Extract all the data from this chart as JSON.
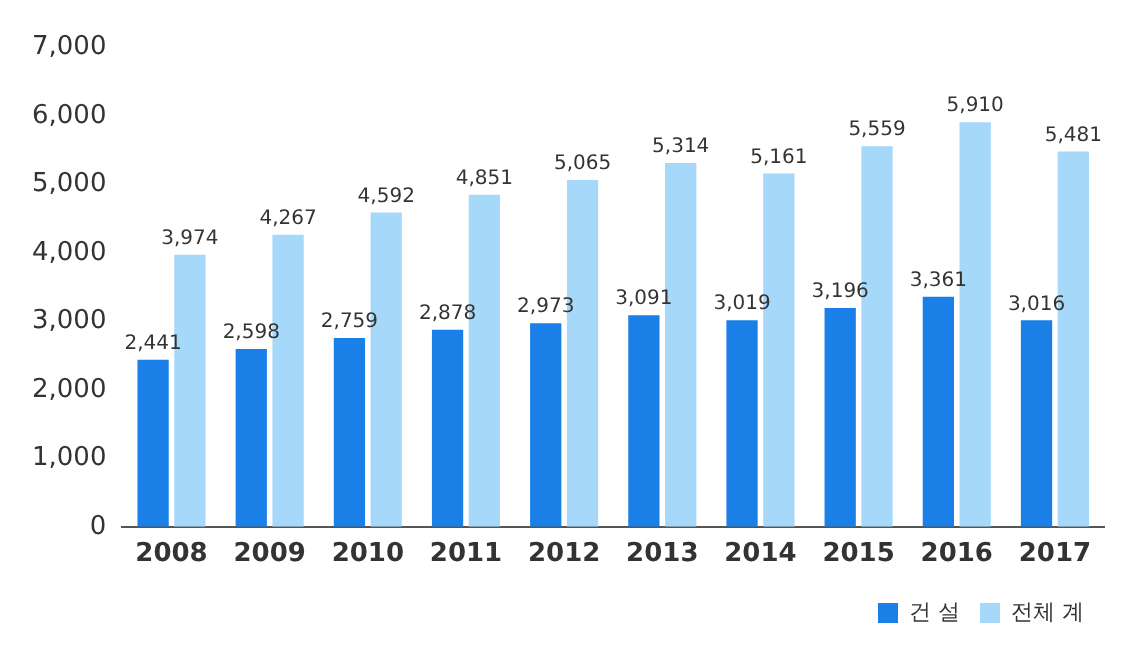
{
  "chart_data": {
    "type": "bar",
    "categories": [
      "2008",
      "2009",
      "2010",
      "2011",
      "2012",
      "2013",
      "2014",
      "2015",
      "2016",
      "2017"
    ],
    "series": [
      {
        "name": "건 설",
        "color": "#1a80e8",
        "values": [
          2441,
          2598,
          2759,
          2878,
          2973,
          3091,
          3019,
          3196,
          3361,
          3016
        ],
        "value_labels": [
          "2,441",
          "2,598",
          "2,759",
          "2,878",
          "2,973",
          "3,091",
          "3,019",
          "3,196",
          "3,361",
          "3,016"
        ]
      },
      {
        "name": "전체 계",
        "color": "#a6d8fa",
        "values": [
          3974,
          4267,
          4592,
          4851,
          5065,
          5314,
          5161,
          5559,
          5910,
          5481
        ],
        "value_labels": [
          "3,974",
          "4,267",
          "4,592",
          "4,851",
          "5,065",
          "5,314",
          "5,161",
          "5,559",
          "5,910",
          "5,481"
        ]
      }
    ],
    "ylim": [
      0,
      7000
    ],
    "yticks": [
      0,
      {
        "value": 1000,
        "label": "1,000"
      },
      {
        "value": 2000,
        "label": "2,000"
      },
      {
        "value": 3000,
        "label": "3,000"
      },
      {
        "value": 4000,
        "label": "4,000"
      },
      {
        "value": 5000,
        "label": "5,000"
      },
      {
        "value": 6000,
        "label": "6,000"
      },
      {
        "value": 7000,
        "label": "7,000"
      }
    ],
    "grid": false,
    "legend": "bottom right"
  }
}
